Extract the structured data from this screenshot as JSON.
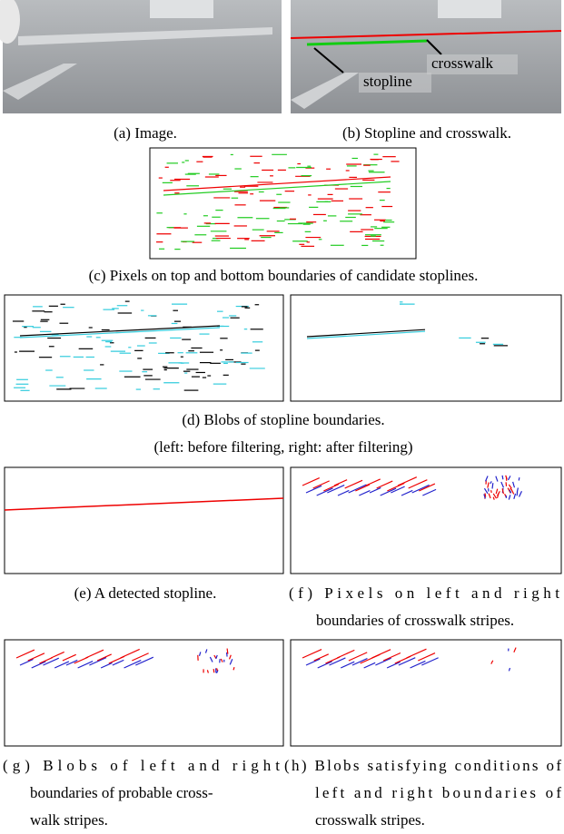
{
  "figure": {
    "panel_a": {
      "caption": [
        "(a) Image."
      ]
    },
    "panel_b": {
      "caption": [
        "(b) Stopline and crosswalk."
      ],
      "labels": [
        "crosswalk",
        "stopline"
      ]
    },
    "panel_c": {
      "caption": [
        "(c) Pixels on top and bottom boundaries of candidate stoplines."
      ]
    },
    "panel_d": {
      "caption": [
        "(d) Blobs of stopline boundaries.",
        "(left: before filtering, right: after filtering)"
      ]
    },
    "panel_e": {
      "caption": [
        "(e) A detected stopline."
      ]
    },
    "panel_f": {
      "caption": [
        "(f) Pixels on left and right",
        "boundaries of crosswalk stripes."
      ]
    },
    "panel_g": {
      "caption": [
        "(g) Blobs of left and right",
        "boundaries of probable cross-",
        "walk stripes."
      ]
    },
    "panel_h": {
      "caption": [
        "(h) Blobs satisfying conditions of",
        "left and right boundaries of",
        "crosswalk stripes."
      ]
    }
  }
}
